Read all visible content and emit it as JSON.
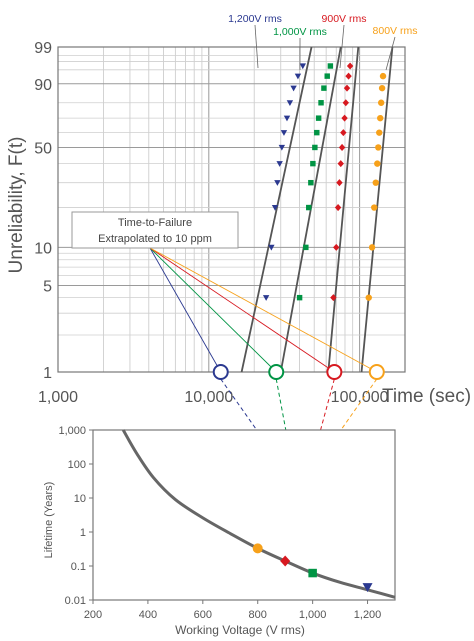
{
  "chart_data": [
    {
      "type": "scatter",
      "scale": "weibull-probability",
      "title": "",
      "xlabel": "Time (sec)",
      "ylabel": "Unreliability, F(t)",
      "x_scale": "log",
      "xlim": [
        1000,
        200000
      ],
      "ylim": [
        1,
        99
      ],
      "x_ticks": [
        1000,
        10000,
        100000
      ],
      "x_tick_labels": [
        "1,000",
        "10,000",
        "100,000"
      ],
      "y_ticks": [
        1,
        5,
        10,
        50,
        90,
        99
      ],
      "y_tick_labels": [
        "1",
        "5",
        "10",
        "50",
        "90",
        "99"
      ],
      "grid": true,
      "annotation": {
        "line1": "Time-to-Failure",
        "line2": "Extrapolated to 10 ppm"
      },
      "series": [
        {
          "name": "1,200V rms",
          "color": "#2b3990",
          "marker": "triangle-down",
          "fit": [
            [
              16500,
              1
            ],
            [
              48000,
              99
            ]
          ],
          "points": [
            [
              24000,
              4
            ],
            [
              26000,
              10
            ],
            [
              27500,
              20
            ],
            [
              28500,
              30
            ],
            [
              29500,
              40
            ],
            [
              30500,
              50
            ],
            [
              31500,
              60
            ],
            [
              33000,
              70
            ],
            [
              34500,
              80
            ],
            [
              36500,
              88
            ],
            [
              39000,
              93
            ],
            [
              42000,
              96
            ]
          ],
          "extrapolated_10ppm": 12000
        },
        {
          "name": "1,000V rms",
          "color": "#009444",
          "marker": "square",
          "fit": [
            [
              30000,
              1
            ],
            [
              75000,
              99
            ]
          ],
          "points": [
            [
              40000,
              4
            ],
            [
              44000,
              10
            ],
            [
              46000,
              20
            ],
            [
              47500,
              30
            ],
            [
              49000,
              40
            ],
            [
              50500,
              50
            ],
            [
              52000,
              60
            ],
            [
              53500,
              70
            ],
            [
              55500,
              80
            ],
            [
              58000,
              88
            ],
            [
              61000,
              93
            ],
            [
              64000,
              96
            ]
          ],
          "extrapolated_10ppm": 28000
        },
        {
          "name": "900V rms",
          "color": "#d71920",
          "marker": "diamond",
          "fit": [
            [
              62000,
              1
            ],
            [
              98000,
              99
            ]
          ],
          "points": [
            [
              67000,
              4
            ],
            [
              70000,
              10
            ],
            [
              72000,
              20
            ],
            [
              73500,
              30
            ],
            [
              75000,
              40
            ],
            [
              76500,
              50
            ],
            [
              78000,
              60
            ],
            [
              79500,
              70
            ],
            [
              81000,
              80
            ],
            [
              82500,
              88
            ],
            [
              84500,
              93
            ],
            [
              86500,
              96
            ]
          ],
          "extrapolated_10ppm": 68000
        },
        {
          "name": "800V rms",
          "color": "#f7a11a",
          "marker": "circle",
          "fit": [
            [
              103000,
              1
            ],
            [
              165000,
              99
            ]
          ],
          "points": [
            [
              115000,
              4
            ],
            [
              121000,
              10
            ],
            [
              125000,
              20
            ],
            [
              128000,
              30
            ],
            [
              131000,
              40
            ],
            [
              133000,
              50
            ],
            [
              135000,
              60
            ],
            [
              137000,
              70
            ],
            [
              139000,
              80
            ],
            [
              141000,
              88
            ],
            [
              143000,
              93
            ]
          ],
          "extrapolated_10ppm": 130000
        }
      ]
    },
    {
      "type": "line",
      "title": "",
      "xlabel": "Working Voltage (V rms)",
      "ylabel": "Lifetime (Years)",
      "y_scale": "log",
      "xlim": [
        200,
        1300
      ],
      "ylim": [
        0.01,
        1000
      ],
      "x_ticks": [
        200,
        400,
        600,
        800,
        1000,
        1200
      ],
      "x_tick_labels": [
        "200",
        "400",
        "600",
        "800",
        "1,000",
        "1,200"
      ],
      "y_ticks": [
        0.01,
        0.1,
        1,
        10,
        100,
        1000
      ],
      "y_tick_labels": [
        "0.01",
        "0.1",
        "1",
        "10",
        "100",
        "1,000"
      ],
      "grid": false,
      "curve": [
        [
          310,
          1000
        ],
        [
          360,
          200
        ],
        [
          420,
          40
        ],
        [
          500,
          9
        ],
        [
          600,
          2.6
        ],
        [
          700,
          0.9
        ],
        [
          800,
          0.33
        ],
        [
          900,
          0.14
        ],
        [
          1000,
          0.062
        ],
        [
          1100,
          0.033
        ],
        [
          1200,
          0.02
        ],
        [
          1300,
          0.012
        ]
      ],
      "points": [
        {
          "voltage": 800,
          "lifetime": 0.33,
          "color": "#f7a11a",
          "marker": "circle"
        },
        {
          "voltage": 900,
          "lifetime": 0.14,
          "color": "#d71920",
          "marker": "diamond"
        },
        {
          "voltage": 1000,
          "lifetime": 0.062,
          "color": "#009444",
          "marker": "square"
        },
        {
          "voltage": 1200,
          "lifetime": 0.024,
          "color": "#2b3990",
          "marker": "triangle-down"
        }
      ]
    }
  ]
}
